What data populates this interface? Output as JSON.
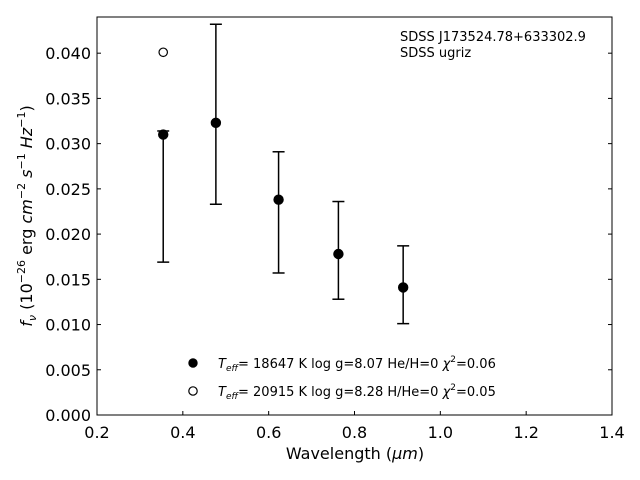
{
  "chart_data": {
    "type": "scatter",
    "xlabel": "Wavelength (",
    "xlabel_unit": "μm",
    "xlabel_end": ")",
    "ylabel_parts": {
      "base": "f",
      "sub": "ν",
      "open": " (10",
      "exp": "−26",
      "unit1": " erg ",
      "cm": "cm",
      "cm_exp": "−2",
      "s": " s",
      "s_exp": "−1",
      "hz": " Hz",
      "hz_exp": "−1",
      "close": ")"
    },
    "xlim": [
      0.2,
      1.4
    ],
    "ylim": [
      0.0,
      0.044
    ],
    "xticks": [
      0.2,
      0.4,
      0.6,
      0.8,
      1.0,
      1.2,
      1.4
    ],
    "xtick_labels": [
      "0.2",
      "0.4",
      "0.6",
      "0.8",
      "1.0",
      "1.2",
      "1.4"
    ],
    "yticks": [
      0.0,
      0.005,
      0.01,
      0.015,
      0.02,
      0.025,
      0.03,
      0.035,
      0.04
    ],
    "ytick_labels": [
      "0.000",
      "0.005",
      "0.010",
      "0.015",
      "0.020",
      "0.025",
      "0.030",
      "0.035",
      "0.040"
    ],
    "observed": {
      "x": [
        0.3543,
        0.477,
        0.6231,
        0.7625,
        0.9134
      ],
      "y": [
        0.0242,
        0.0332,
        0.0234,
        0.0182,
        0.0144
      ],
      "yerr_low": [
        0.0073,
        0.0099,
        0.0077,
        0.0054,
        0.0043
      ],
      "yerr_high": [
        0.0072,
        0.01,
        0.0057,
        0.0054,
        0.0043
      ]
    },
    "series": [
      {
        "marker": "filled-circle",
        "x": [
          0.3543,
          0.477,
          0.6231,
          0.7625,
          0.9134
        ],
        "y": [
          0.031,
          0.0323,
          0.0238,
          0.0178,
          0.0141
        ]
      },
      {
        "marker": "open-circle",
        "x": [
          0.3543
        ],
        "y": [
          0.0401
        ]
      }
    ],
    "legend": [
      {
        "marker": "filled-circle",
        "teff_symbol": "T",
        "teff_sub": "eff",
        "text": "= 18647 K  log g=8.07  He/H=0  ",
        "chi_symbol": "χ",
        "chi_exp": "2",
        "chi_val": "=0.06"
      },
      {
        "marker": "open-circle",
        "teff_symbol": "T",
        "teff_sub": "eff",
        "text": "= 20915 K  log g=8.28  H/He=0  ",
        "chi_symbol": "χ",
        "chi_exp": "2",
        "chi_val": "=0.05"
      }
    ],
    "annotations": [
      "SDSS J173524.78+633302.9",
      "SDSS ugriz"
    ],
    "legend_position": "lower-center",
    "grid": false
  }
}
